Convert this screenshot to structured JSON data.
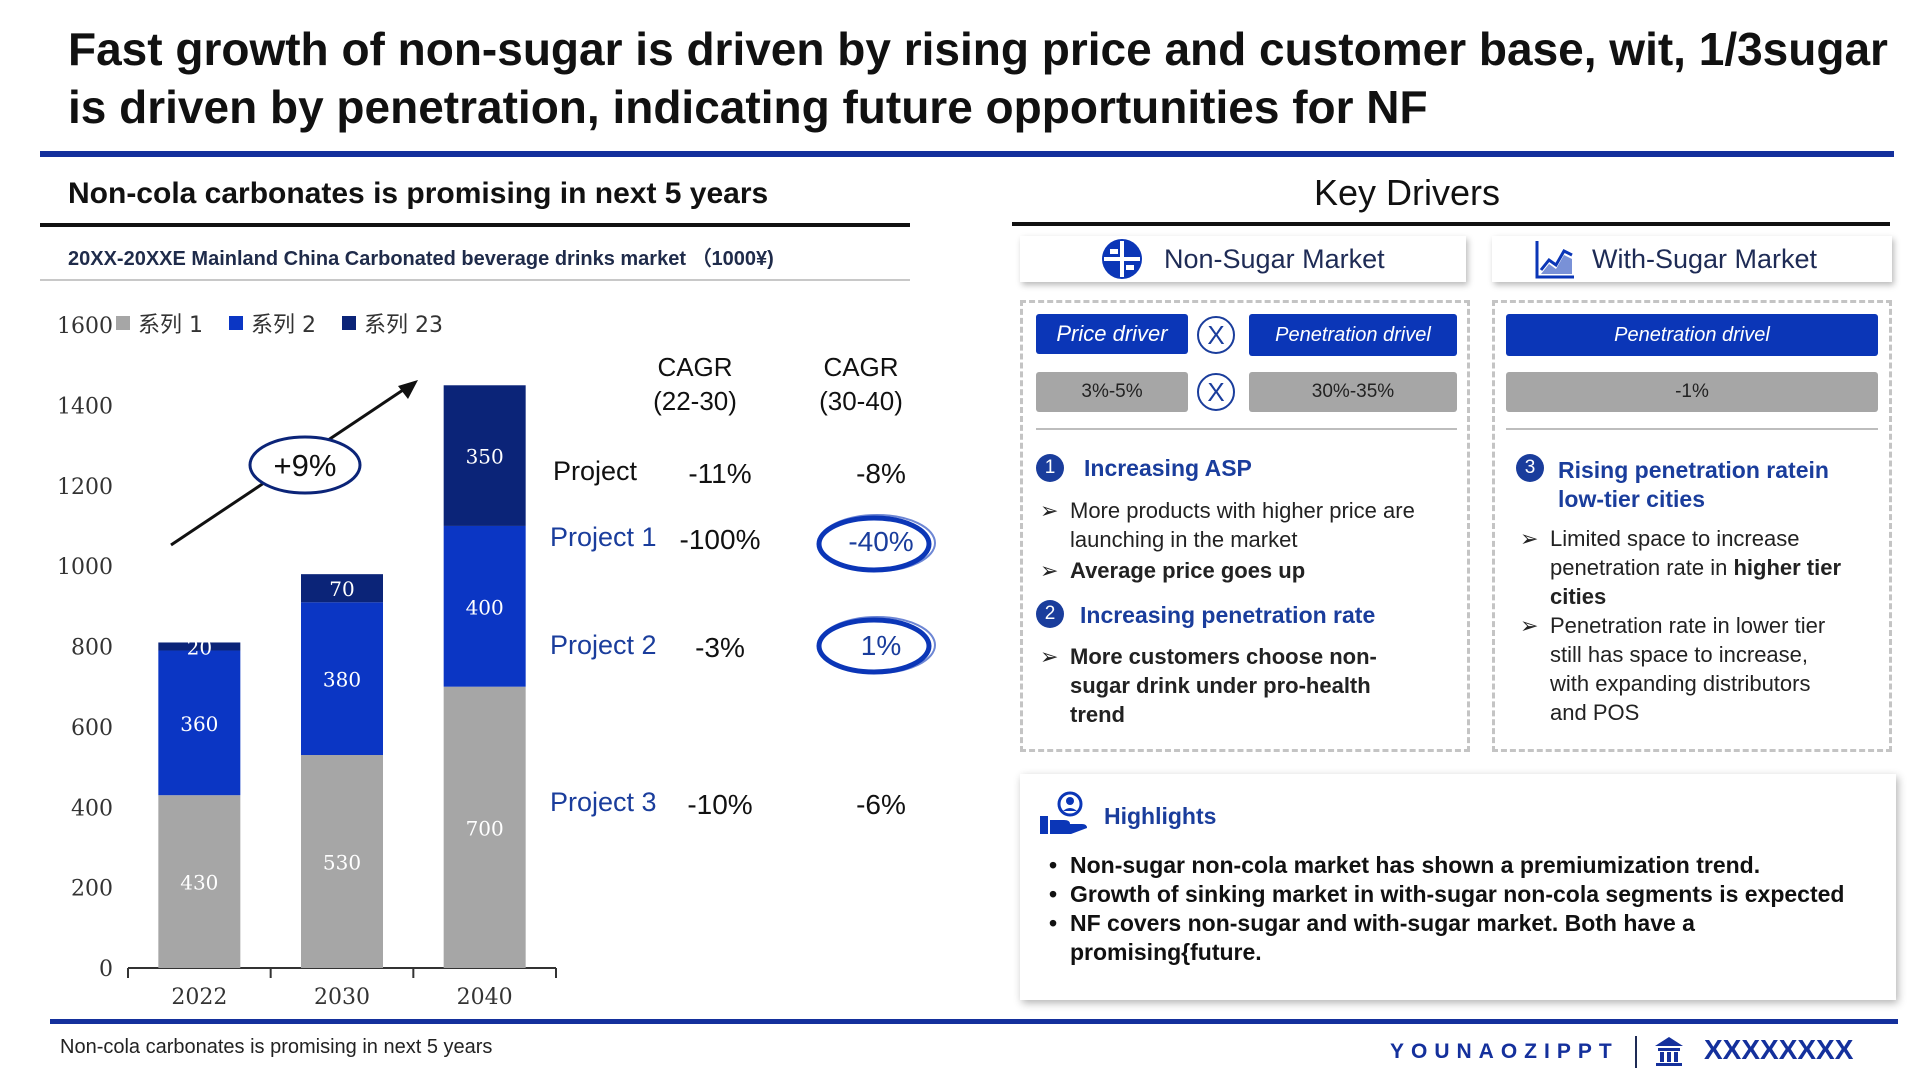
{
  "title": "Fast growth of non-sugar is driven by rising price and customer base, wit, 1/3sugar is driven by penetration, indicating future opportunities for NF",
  "left": {
    "section_title": "Non-cola carbonates is promising in next 5 years",
    "chart_subtitle": "20XX-20XXE Mainland China Carbonated beverage drinks market （1000¥)",
    "growth_label": "+9%",
    "cagr_headers": [
      "CAGR\n(22-30)",
      "CAGR\n(30-40)"
    ],
    "projects": [
      {
        "label": "Project",
        "v1": "-11%",
        "v2": "-8%",
        "highlight": false
      },
      {
        "label": "Project 1",
        "v1": "-100%",
        "v2": "-40%",
        "highlight": true
      },
      {
        "label": "Project 2",
        "v1": "-3%",
        "v2": "1%",
        "highlight": true
      },
      {
        "label": "Project 3",
        "v1": "-10%",
        "v2": "-6%",
        "highlight": false
      }
    ]
  },
  "chart_data": {
    "type": "bar",
    "stacked": true,
    "categories": [
      "2022",
      "2030",
      "2040"
    ],
    "series": [
      {
        "name": "系列 1",
        "values": [
          430,
          530,
          700
        ],
        "color": "#a6a6a6"
      },
      {
        "name": "系列 2",
        "values": [
          360,
          380,
          400
        ],
        "color": "#0b36c4"
      },
      {
        "name": "系列 23",
        "values": [
          20,
          70,
          350
        ],
        "color": "#0b2478"
      }
    ],
    "ylim": [
      0,
      1600
    ],
    "yticks": [
      0,
      200,
      400,
      600,
      800,
      1000,
      1200,
      1400,
      1600
    ],
    "title": "20XX-20XXE Mainland China Carbonated beverage drinks market （1000¥)",
    "xlabel": "",
    "ylabel": "",
    "legend": "top-left"
  },
  "right": {
    "section_title": "Key Drivers",
    "non_sugar": {
      "title": "Non-Sugar Market",
      "price_driver": "Price driver",
      "penetration_driver": "Penetration drivel",
      "price_range": "3%-5%",
      "penetration_range": "30%-35%",
      "x_symbol": "X",
      "drivers": [
        {
          "num": "1",
          "title": "Increasing ASP",
          "bullets": [
            {
              "text": "More products with higher price are launching in the market",
              "bold": false
            },
            {
              "text": "Average price goes up",
              "bold": true
            }
          ]
        },
        {
          "num": "2",
          "title": "Increasing penetration rate",
          "bullets": [
            {
              "text": "More customers choose non-sugar drink under pro-health trend",
              "bold": true
            }
          ]
        }
      ]
    },
    "with_sugar": {
      "title": "With-Sugar Market",
      "penetration_driver": "Penetration drivel",
      "penetration_value": "-1%",
      "driver": {
        "num": "3",
        "title": "Rising penetration ratein low-tier cities",
        "bullet1_pre": "Limited space to increase penetration rate in ",
        "bullet1_bold": "higher tier cities",
        "bullet2": "Penetration rate in lower tier still has space to increase, with expanding distributors and POS"
      }
    },
    "highlights": {
      "title": "Highlights",
      "items": [
        "Non-sugar non-cola market has shown a premiumization trend.",
        "Growth of sinking market in with-sugar non-cola segments is expected",
        "NF covers non-sugar and with-sugar market. Both have a promising{future."
      ]
    }
  },
  "footer": {
    "note": "Non-cola carbonates is promising in next 5 years",
    "brand": "YOUNAOZIPPT",
    "brand2": "XXXXXXXX"
  },
  "colors": {
    "accent": "#14309c",
    "blue": "#0b36c4",
    "navy": "#0b2478",
    "gray": "#a6a6a6"
  }
}
